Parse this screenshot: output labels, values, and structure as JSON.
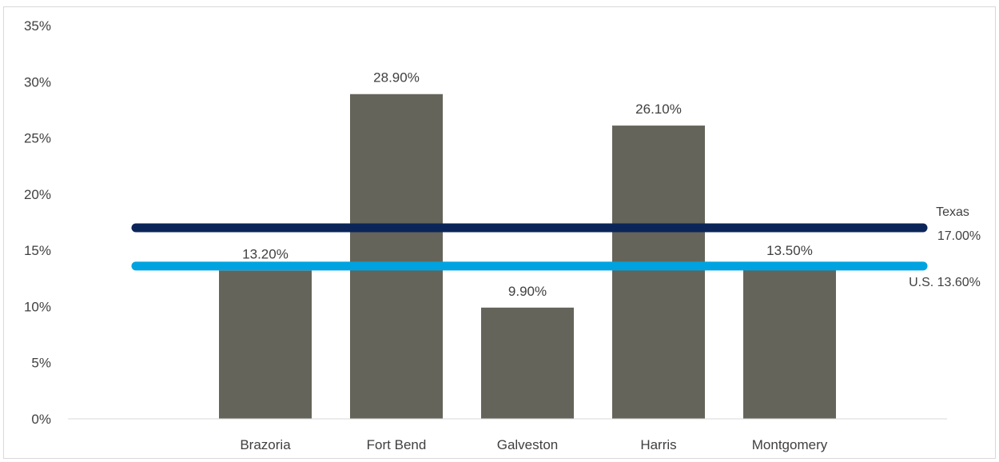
{
  "chart_data": {
    "type": "bar",
    "title": "",
    "xlabel": "",
    "ylabel": "",
    "categories": [
      "Brazoria",
      "Fort Bend",
      "Galveston",
      "Harris",
      "Montgomery"
    ],
    "values": [
      13.2,
      28.9,
      9.9,
      26.1,
      13.5
    ],
    "data_labels": [
      "13.20%",
      "28.90%",
      "9.90%",
      "26.10%",
      "13.50%"
    ],
    "ylim": [
      0,
      35
    ],
    "yticks": [
      0,
      5,
      10,
      15,
      20,
      25,
      30,
      35
    ],
    "ytick_labels": [
      "0%",
      "5%",
      "10%",
      "15%",
      "20%",
      "25%",
      "30%",
      "35%"
    ],
    "grid": false,
    "bar_color": "#64645a",
    "reference_lines": [
      {
        "value": 17.0,
        "label_name": "Texas",
        "label_value": "17.00%",
        "color": "#0b2559"
      },
      {
        "value": 13.6,
        "label_name": "U.S.",
        "label_value": "13.60%",
        "label": "U.S. 13.60%",
        "color": "#00a3e0"
      }
    ]
  }
}
